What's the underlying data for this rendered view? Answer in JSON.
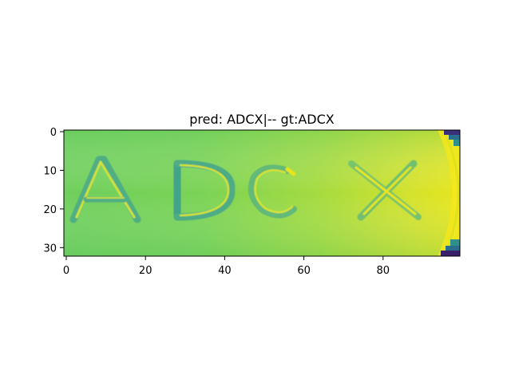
{
  "title": "pred: ADCX|-- gt:ADCX",
  "image_text": "ADCX",
  "colormap": "viridis",
  "colors": {
    "background_green": "#6ecf5a",
    "mid_green": "#8ad64a",
    "yellow": "#d6e22a",
    "bright_yellow": "#eae51a",
    "dark_teal": "#2a8a8a",
    "deep_blue": "#2a3a8a",
    "purple": "#3b1f6a"
  },
  "x_axis": {
    "tick_labels": [
      "0",
      "20",
      "40",
      "60",
      "80"
    ],
    "ticks": [
      0,
      20,
      40,
      60,
      80
    ],
    "range": [
      0,
      100
    ]
  },
  "y_axis": {
    "tick_labels": [
      "0",
      "10",
      "20",
      "30"
    ],
    "ticks": [
      0,
      10,
      20,
      30
    ],
    "range": [
      0,
      32
    ]
  }
}
